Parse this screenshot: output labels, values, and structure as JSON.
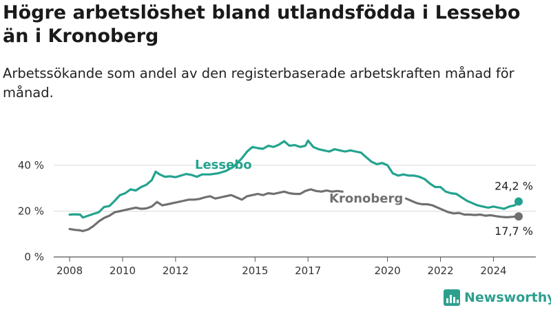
{
  "header": {
    "title": "Högre arbetslöshet bland utlandsfödda i Lessebo än i Kronoberg",
    "subtitle": "Arbetssökande som andel av den registerbaserade arbetskraften månad för månad."
  },
  "brand": {
    "name": "Newsworthy",
    "icon": "newsworthy-logo-icon",
    "color": "#2c9f8e"
  },
  "chart_data": {
    "type": "line",
    "title": "Högre arbetslöshet bland utlandsfödda i Lessebo än i Kronoberg",
    "subtitle": "Arbetssökande som andel av den registerbaserade arbetskraften månad för månad.",
    "x_ticks": [
      2008,
      2010,
      2012,
      2015,
      2017,
      2020,
      2022,
      2024
    ],
    "y_ticks": [
      {
        "value": 0,
        "label": "0 %"
      },
      {
        "value": 20,
        "label": "20 %"
      },
      {
        "value": 40,
        "label": "40 %"
      }
    ],
    "xlim": [
      2007.4,
      2025.6
    ],
    "ylim": [
      0,
      52
    ],
    "grid": true,
    "legend": "direct labels on lines",
    "series": [
      {
        "name": "Lessebo",
        "color": "#23a38f",
        "end_label": "24,2 %",
        "points": [
          [
            2008.0,
            18.5
          ],
          [
            2008.2,
            18.6
          ],
          [
            2008.4,
            18.5
          ],
          [
            2008.5,
            17.2
          ],
          [
            2008.7,
            18.0
          ],
          [
            2008.9,
            18.8
          ],
          [
            2009.1,
            19.5
          ],
          [
            2009.3,
            21.8
          ],
          [
            2009.5,
            22.2
          ],
          [
            2009.7,
            24.5
          ],
          [
            2009.9,
            27.0
          ],
          [
            2010.1,
            27.8
          ],
          [
            2010.3,
            29.5
          ],
          [
            2010.5,
            29.0
          ],
          [
            2010.7,
            30.5
          ],
          [
            2010.9,
            31.5
          ],
          [
            2011.1,
            33.5
          ],
          [
            2011.25,
            37.2
          ],
          [
            2011.4,
            36.0
          ],
          [
            2011.6,
            35.0
          ],
          [
            2011.8,
            35.2
          ],
          [
            2012.0,
            34.8
          ],
          [
            2012.2,
            35.5
          ],
          [
            2012.4,
            36.2
          ],
          [
            2012.6,
            35.8
          ],
          [
            2012.8,
            35.0
          ],
          [
            2013.0,
            36.0
          ],
          [
            2013.3,
            36.0
          ],
          [
            2013.6,
            36.5
          ],
          [
            2013.9,
            37.5
          ],
          [
            2014.2,
            39.5
          ],
          [
            2014.5,
            43.0
          ],
          [
            2014.7,
            46.0
          ],
          [
            2014.9,
            48.0
          ],
          [
            2015.1,
            47.5
          ],
          [
            2015.3,
            47.2
          ],
          [
            2015.5,
            48.5
          ],
          [
            2015.7,
            48.0
          ],
          [
            2015.9,
            49.0
          ],
          [
            2016.1,
            50.5
          ],
          [
            2016.3,
            48.5
          ],
          [
            2016.5,
            48.8
          ],
          [
            2016.7,
            48.0
          ],
          [
            2016.9,
            48.5
          ],
          [
            2017.0,
            50.8
          ],
          [
            2017.2,
            48.0
          ],
          [
            2017.4,
            47.0
          ],
          [
            2017.6,
            46.5
          ],
          [
            2017.8,
            46.0
          ],
          [
            2018.0,
            47.0
          ],
          [
            2018.2,
            46.5
          ],
          [
            2018.4,
            46.0
          ],
          [
            2018.6,
            46.5
          ],
          [
            2018.8,
            46.0
          ],
          [
            2019.0,
            45.5
          ],
          [
            2019.2,
            43.5
          ],
          [
            2019.4,
            41.5
          ],
          [
            2019.6,
            40.5
          ],
          [
            2019.8,
            41.0
          ],
          [
            2020.0,
            40.0
          ],
          [
            2020.2,
            36.5
          ],
          [
            2020.4,
            35.5
          ],
          [
            2020.6,
            36.0
          ],
          [
            2020.8,
            35.5
          ],
          [
            2021.0,
            35.5
          ],
          [
            2021.2,
            35.0
          ],
          [
            2021.4,
            34.0
          ],
          [
            2021.6,
            32.0
          ],
          [
            2021.8,
            30.5
          ],
          [
            2022.0,
            30.5
          ],
          [
            2022.2,
            28.5
          ],
          [
            2022.4,
            27.8
          ],
          [
            2022.6,
            27.5
          ],
          [
            2022.8,
            26.0
          ],
          [
            2023.0,
            24.5
          ],
          [
            2023.2,
            23.5
          ],
          [
            2023.4,
            22.5
          ],
          [
            2023.6,
            22.0
          ],
          [
            2023.8,
            21.5
          ],
          [
            2024.0,
            22.0
          ],
          [
            2024.2,
            21.5
          ],
          [
            2024.4,
            21.0
          ],
          [
            2024.6,
            22.0
          ],
          [
            2024.8,
            22.5
          ],
          [
            2024.95,
            24.2
          ]
        ]
      },
      {
        "name": "Kronoberg",
        "color": "#707070",
        "end_label": "17,7 %",
        "points": [
          [
            2008.0,
            12.2
          ],
          [
            2008.2,
            11.8
          ],
          [
            2008.4,
            11.6
          ],
          [
            2008.5,
            11.3
          ],
          [
            2008.7,
            12.0
          ],
          [
            2008.9,
            13.5
          ],
          [
            2009.1,
            15.5
          ],
          [
            2009.3,
            17.0
          ],
          [
            2009.5,
            18.0
          ],
          [
            2009.7,
            19.5
          ],
          [
            2009.9,
            20.0
          ],
          [
            2010.1,
            20.5
          ],
          [
            2010.3,
            21.0
          ],
          [
            2010.5,
            21.5
          ],
          [
            2010.7,
            21.0
          ],
          [
            2010.9,
            21.2
          ],
          [
            2011.1,
            22.0
          ],
          [
            2011.3,
            24.0
          ],
          [
            2011.5,
            22.5
          ],
          [
            2011.7,
            23.0
          ],
          [
            2011.9,
            23.5
          ],
          [
            2012.1,
            24.0
          ],
          [
            2012.3,
            24.5
          ],
          [
            2012.5,
            25.0
          ],
          [
            2012.7,
            25.0
          ],
          [
            2012.9,
            25.3
          ],
          [
            2013.1,
            26.0
          ],
          [
            2013.3,
            26.5
          ],
          [
            2013.5,
            25.5
          ],
          [
            2013.7,
            26.0
          ],
          [
            2013.9,
            26.5
          ],
          [
            2014.1,
            27.0
          ],
          [
            2014.3,
            26.0
          ],
          [
            2014.5,
            25.0
          ],
          [
            2014.7,
            26.5
          ],
          [
            2014.9,
            27.0
          ],
          [
            2015.1,
            27.5
          ],
          [
            2015.3,
            27.0
          ],
          [
            2015.5,
            27.8
          ],
          [
            2015.7,
            27.5
          ],
          [
            2015.9,
            28.0
          ],
          [
            2016.1,
            28.5
          ],
          [
            2016.3,
            27.8
          ],
          [
            2016.5,
            27.5
          ],
          [
            2016.7,
            27.5
          ],
          [
            2016.9,
            28.8
          ],
          [
            2017.1,
            29.5
          ],
          [
            2017.3,
            28.8
          ],
          [
            2017.5,
            28.5
          ],
          [
            2017.7,
            29.0
          ],
          [
            2017.9,
            28.5
          ],
          [
            2018.1,
            28.8
          ],
          [
            2018.3,
            28.5
          ],
          [
            2020.7,
            25.5
          ],
          [
            2020.9,
            24.5
          ],
          [
            2021.1,
            23.5
          ],
          [
            2021.3,
            23.0
          ],
          [
            2021.5,
            23.0
          ],
          [
            2021.7,
            22.5
          ],
          [
            2021.9,
            21.5
          ],
          [
            2022.1,
            20.5
          ],
          [
            2022.3,
            19.5
          ],
          [
            2022.5,
            19.0
          ],
          [
            2022.7,
            19.2
          ],
          [
            2022.9,
            18.5
          ],
          [
            2023.1,
            18.5
          ],
          [
            2023.3,
            18.3
          ],
          [
            2023.5,
            18.5
          ],
          [
            2023.7,
            18.0
          ],
          [
            2023.9,
            18.2
          ],
          [
            2024.1,
            17.8
          ],
          [
            2024.3,
            17.5
          ],
          [
            2024.5,
            17.3
          ],
          [
            2024.7,
            17.5
          ],
          [
            2024.95,
            17.7
          ]
        ]
      }
    ]
  }
}
